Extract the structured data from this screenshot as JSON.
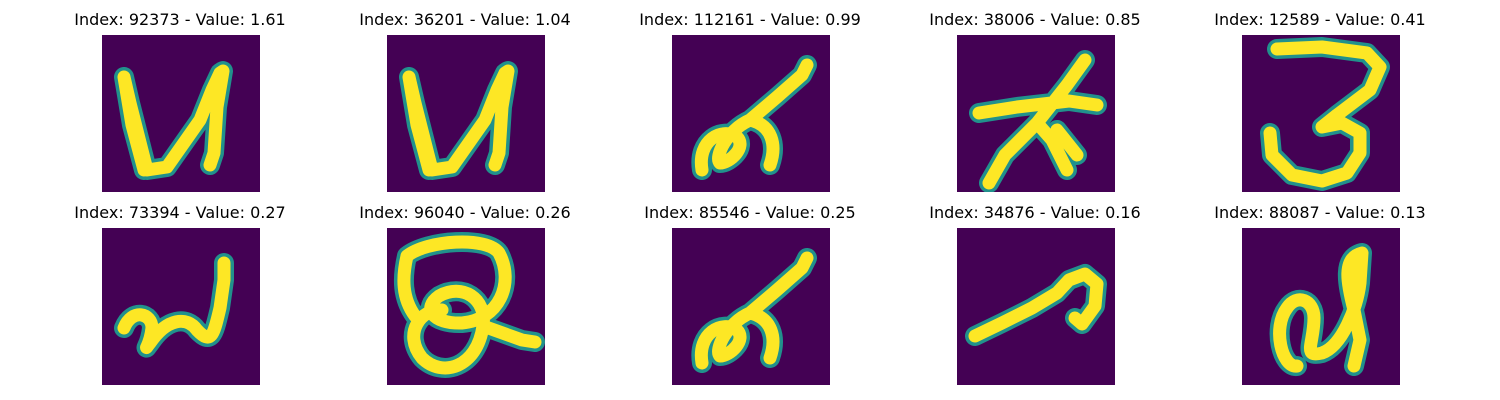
{
  "colors": {
    "background": "#440154",
    "mid": "#21918c",
    "stroke": "#fde725"
  },
  "panels": [
    {
      "index": "92373",
      "value": "1.61",
      "glyph": "glyph-u"
    },
    {
      "index": "36201",
      "value": "1.04",
      "glyph": "glyph-u"
    },
    {
      "index": "112161",
      "value": "0.99",
      "glyph": "glyph-loop-hook"
    },
    {
      "index": "38006",
      "value": "0.85",
      "glyph": "glyph-cross"
    },
    {
      "index": "12589",
      "value": "0.41",
      "glyph": "glyph-three"
    },
    {
      "index": "73394",
      "value": "0.27",
      "glyph": "glyph-wave"
    },
    {
      "index": "96040",
      "value": "0.26",
      "glyph": "glyph-rings"
    },
    {
      "index": "85546",
      "value": "0.25",
      "glyph": "glyph-loop-hook"
    },
    {
      "index": "34876",
      "value": "0.16",
      "glyph": "glyph-comma"
    },
    {
      "index": "88087",
      "value": "0.13",
      "glyph": "glyph-n"
    }
  ]
}
